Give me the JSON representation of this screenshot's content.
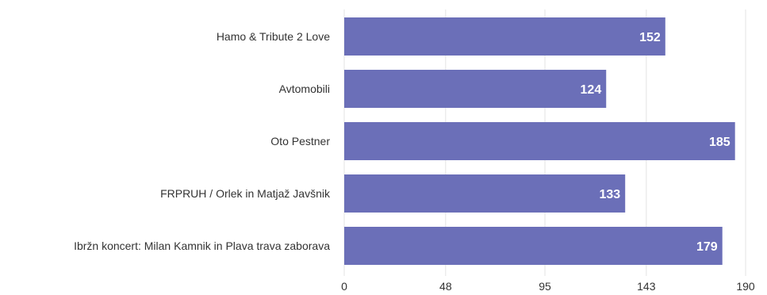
{
  "chart_data": {
    "type": "bar",
    "orientation": "horizontal",
    "categories": [
      "Hamo & Tribute 2 Love",
      "Avtomobili",
      "Oto Pestner",
      "FRPRUH / Orlek in Matjaž Javšnik",
      "Ibržn koncert: Milan Kamnik in Plava trava zaborava"
    ],
    "values": [
      152,
      124,
      185,
      133,
      179
    ],
    "value_labels": [
      "152",
      "124",
      "185",
      "133",
      "179"
    ],
    "xticks": [
      0,
      48,
      95,
      143,
      190
    ],
    "xtick_labels": [
      "0",
      "48",
      "95",
      "143",
      "190"
    ],
    "xlim": [
      0,
      190
    ],
    "grid": true,
    "bar_color": "#6b6fb8"
  }
}
